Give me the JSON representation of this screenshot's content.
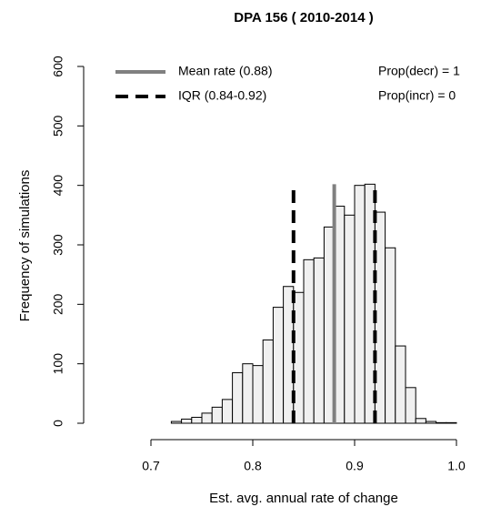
{
  "chart_data": {
    "type": "histogram",
    "title": "DPA  156 ( 2010-2014 )",
    "x_label": "Est. avg. annual rate of change",
    "y_label": "Frequency of simulations",
    "bins": [
      0.72,
      0.73,
      0.74,
      0.75,
      0.76,
      0.77,
      0.78,
      0.79,
      0.8,
      0.81,
      0.82,
      0.83,
      0.84,
      0.85,
      0.86,
      0.87,
      0.88,
      0.89,
      0.9,
      0.91,
      0.92,
      0.93,
      0.94,
      0.95,
      0.96,
      0.97,
      0.98,
      0.99,
      1.0
    ],
    "counts": [
      3,
      7,
      10,
      17,
      27,
      40,
      85,
      100,
      97,
      140,
      195,
      230,
      220,
      275,
      278,
      330,
      365,
      350,
      400,
      402,
      355,
      295,
      130,
      60,
      8,
      3,
      1,
      1
    ],
    "color": "#f0f0f0",
    "xlim": [
      0.7,
      1.0
    ],
    "xticks": [
      0.7,
      0.8,
      0.9,
      {
        "value": 1.0,
        "label": "1.0"
      }
    ],
    "ylim": [
      0,
      600
    ],
    "yticks": [
      0,
      100,
      200,
      300,
      400,
      500,
      600
    ],
    "mean": {
      "value": 0.88,
      "label": "Mean rate (0.88)",
      "color": "#808080"
    },
    "iqr": {
      "values": [
        0.84,
        0.92
      ],
      "label": "IQR (0.84-0.92)",
      "color": "#000000"
    },
    "annotations": [
      "Prop(decr) =  1",
      "Prop(incr) =  0"
    ]
  }
}
